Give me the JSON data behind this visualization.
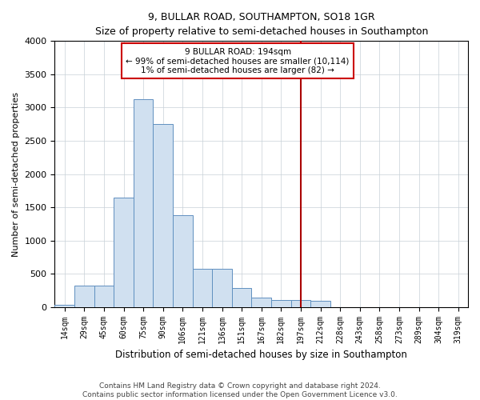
{
  "title": "9, BULLAR ROAD, SOUTHAMPTON, SO18 1GR",
  "subtitle": "Size of property relative to semi-detached houses in Southampton",
  "xlabel": "Distribution of semi-detached houses by size in Southampton",
  "ylabel": "Number of semi-detached properties",
  "footnote1": "Contains HM Land Registry data © Crown copyright and database right 2024.",
  "footnote2": "Contains public sector information licensed under the Open Government Licence v3.0.",
  "bin_labels": [
    "14sqm",
    "29sqm",
    "45sqm",
    "60sqm",
    "75sqm",
    "90sqm",
    "106sqm",
    "121sqm",
    "136sqm",
    "151sqm",
    "167sqm",
    "182sqm",
    "197sqm",
    "212sqm",
    "228sqm",
    "243sqm",
    "258sqm",
    "273sqm",
    "289sqm",
    "304sqm",
    "319sqm"
  ],
  "bar_values": [
    30,
    320,
    320,
    1640,
    3130,
    2750,
    1380,
    580,
    580,
    280,
    140,
    110,
    100,
    90,
    0,
    0,
    0,
    0,
    0,
    0,
    0
  ],
  "bar_color": "#d0e0f0",
  "bar_edge_color": "#6090c0",
  "property_label": "9 BULLAR ROAD: 194sqm",
  "pct_smaller_text": "← 99% of semi-detached houses are smaller (10,114)",
  "pct_larger_text": "1% of semi-detached houses are larger (82) →",
  "vline_color": "#aa0000",
  "vline_x_index": 12.0,
  "annotation_box_edge": "#cc0000",
  "annotation_box_face": "#ffffff",
  "ylim": [
    0,
    4000
  ],
  "yticks": [
    0,
    500,
    1000,
    1500,
    2000,
    2500,
    3000,
    3500,
    4000
  ],
  "background_color": "#ffffff",
  "grid_color": "#c8d0d8",
  "title_fontsize": 9,
  "subtitle_fontsize": 8.5,
  "tick_fontsize": 7,
  "ylabel_fontsize": 8,
  "xlabel_fontsize": 8.5,
  "annotation_fontsize": 7.5,
  "footnote_fontsize": 6.5
}
